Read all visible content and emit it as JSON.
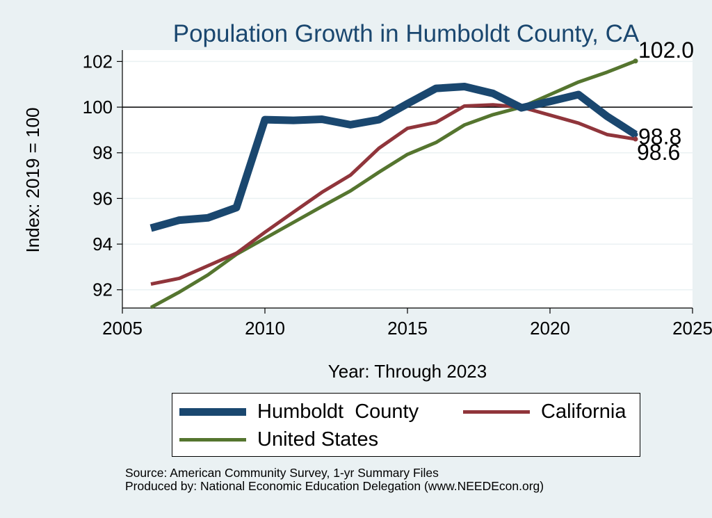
{
  "chart_data": {
    "type": "line",
    "title": "Population Growth in Humboldt County, CA",
    "xlabel": "Year: Through 2023",
    "ylabel": "Index: 2019 = 100",
    "xlim": [
      2005,
      2025
    ],
    "ylim": [
      91.2,
      102.5
    ],
    "xticks": [
      2005,
      2010,
      2015,
      2020,
      2025
    ],
    "yticks": [
      92,
      94,
      96,
      98,
      100,
      102
    ],
    "reference_line": 100,
    "grid": true,
    "x": [
      2006,
      2007,
      2008,
      2009,
      2010,
      2011,
      2012,
      2013,
      2014,
      2015,
      2016,
      2017,
      2018,
      2019,
      2020,
      2021,
      2022,
      2023
    ],
    "series": [
      {
        "name": "Humboldt  County",
        "color": "#1a476f",
        "values": [
          94.7,
          95.05,
          95.15,
          95.6,
          99.45,
          99.42,
          99.47,
          99.23,
          99.45,
          100.15,
          100.82,
          100.9,
          100.6,
          99.97,
          100.25,
          100.55,
          99.6,
          98.8
        ],
        "end_label": "98.8"
      },
      {
        "name": "California",
        "color": "#90353b",
        "values": [
          92.25,
          92.5,
          93.05,
          93.6,
          94.52,
          95.4,
          96.27,
          97.02,
          98.2,
          99.07,
          99.33,
          100.05,
          100.1,
          100.0,
          99.65,
          99.3,
          98.8,
          98.6
        ],
        "end_label": "98.6"
      },
      {
        "name": "United States",
        "color": "#55752f",
        "values": [
          91.22,
          91.9,
          92.65,
          93.55,
          94.25,
          94.95,
          95.65,
          96.33,
          97.15,
          97.93,
          98.45,
          99.22,
          99.67,
          100.0,
          100.55,
          101.1,
          101.53,
          102.02
        ],
        "end_label": "102.0"
      }
    ],
    "legend": {
      "placement": "bottom",
      "columns": 2
    }
  },
  "footer": {
    "source": "Source: American Community Survey, 1-yr Summary Files",
    "produced_by": "Produced by: National Economic Education Delegation (www.NEEDEcon.org)"
  },
  "colors": {
    "background": "#eaf1f3",
    "plot_background": "#ffffff",
    "title": "#1a476f",
    "gridline": "#eaf1f3"
  }
}
